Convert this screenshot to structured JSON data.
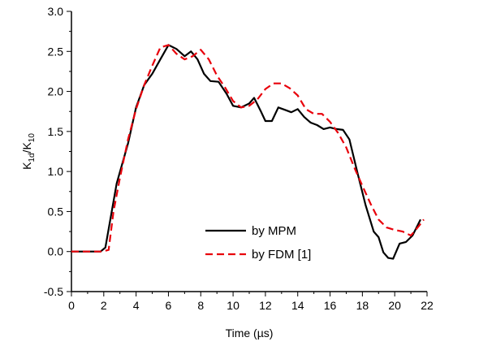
{
  "chart_data": {
    "type": "line",
    "xlabel": "Time (µs)",
    "ylabel": {
      "base": "K",
      "sub1": "1d",
      "slash": "/K",
      "sub2": "10"
    },
    "xlim": [
      0,
      22
    ],
    "ylim": [
      -0.5,
      3.0
    ],
    "xticks": [
      "0",
      "2",
      "4",
      "6",
      "8",
      "10",
      "12",
      "14",
      "16",
      "18",
      "20",
      "22"
    ],
    "yticks": [
      "-0.5",
      "0.0",
      "0.5",
      "1.0",
      "1.5",
      "2.0",
      "2.5",
      "3.0"
    ],
    "legend_position": "lower-center",
    "grid": false,
    "series": [
      {
        "name": "by MPM",
        "color": "#000000",
        "style": "solid",
        "points": [
          [
            0,
            0.0
          ],
          [
            1.8,
            0.0
          ],
          [
            2.1,
            0.05
          ],
          [
            2.8,
            0.85
          ],
          [
            3.5,
            1.35
          ],
          [
            4.0,
            1.8
          ],
          [
            4.5,
            2.08
          ],
          [
            5.0,
            2.22
          ],
          [
            5.5,
            2.4
          ],
          [
            6.0,
            2.58
          ],
          [
            6.5,
            2.53
          ],
          [
            7.0,
            2.44
          ],
          [
            7.4,
            2.5
          ],
          [
            7.8,
            2.4
          ],
          [
            8.2,
            2.22
          ],
          [
            8.6,
            2.13
          ],
          [
            9.1,
            2.12
          ],
          [
            9.6,
            1.97
          ],
          [
            10.0,
            1.82
          ],
          [
            10.5,
            1.8
          ],
          [
            11.0,
            1.85
          ],
          [
            11.3,
            1.92
          ],
          [
            11.7,
            1.76
          ],
          [
            12.0,
            1.63
          ],
          [
            12.4,
            1.63
          ],
          [
            12.8,
            1.8
          ],
          [
            13.2,
            1.77
          ],
          [
            13.6,
            1.74
          ],
          [
            14.0,
            1.78
          ],
          [
            14.4,
            1.68
          ],
          [
            14.8,
            1.61
          ],
          [
            15.2,
            1.58
          ],
          [
            15.6,
            1.53
          ],
          [
            16.0,
            1.55
          ],
          [
            16.4,
            1.53
          ],
          [
            16.8,
            1.52
          ],
          [
            17.2,
            1.4
          ],
          [
            17.7,
            0.98
          ],
          [
            18.2,
            0.58
          ],
          [
            18.7,
            0.25
          ],
          [
            19.0,
            0.18
          ],
          [
            19.3,
            -0.01
          ],
          [
            19.6,
            -0.08
          ],
          [
            19.9,
            -0.09
          ],
          [
            20.3,
            0.1
          ],
          [
            20.7,
            0.12
          ],
          [
            21.1,
            0.2
          ],
          [
            21.6,
            0.4
          ]
        ]
      },
      {
        "name": "by FDM [1]",
        "color": "#e8000b",
        "style": "dashed",
        "points": [
          [
            0,
            0.0
          ],
          [
            1.9,
            0.0
          ],
          [
            2.3,
            0.02
          ],
          [
            2.6,
            0.5
          ],
          [
            3.0,
            0.92
          ],
          [
            3.5,
            1.4
          ],
          [
            4.0,
            1.78
          ],
          [
            4.5,
            2.08
          ],
          [
            5.0,
            2.32
          ],
          [
            5.5,
            2.55
          ],
          [
            6.0,
            2.58
          ],
          [
            6.5,
            2.47
          ],
          [
            7.0,
            2.4
          ],
          [
            7.5,
            2.44
          ],
          [
            8.0,
            2.52
          ],
          [
            8.5,
            2.4
          ],
          [
            9.0,
            2.2
          ],
          [
            9.5,
            2.05
          ],
          [
            10.0,
            1.88
          ],
          [
            10.5,
            1.8
          ],
          [
            11.0,
            1.82
          ],
          [
            11.5,
            1.9
          ],
          [
            12.0,
            2.03
          ],
          [
            12.5,
            2.1
          ],
          [
            13.0,
            2.1
          ],
          [
            13.5,
            2.04
          ],
          [
            14.0,
            1.95
          ],
          [
            14.5,
            1.78
          ],
          [
            15.0,
            1.72
          ],
          [
            15.5,
            1.72
          ],
          [
            16.0,
            1.62
          ],
          [
            16.5,
            1.48
          ],
          [
            17.0,
            1.3
          ],
          [
            17.5,
            1.05
          ],
          [
            18.0,
            0.82
          ],
          [
            18.5,
            0.6
          ],
          [
            19.0,
            0.4
          ],
          [
            19.5,
            0.3
          ],
          [
            20.0,
            0.27
          ],
          [
            20.5,
            0.25
          ],
          [
            21.0,
            0.2
          ],
          [
            21.5,
            0.32
          ],
          [
            21.8,
            0.4
          ]
        ]
      }
    ]
  }
}
